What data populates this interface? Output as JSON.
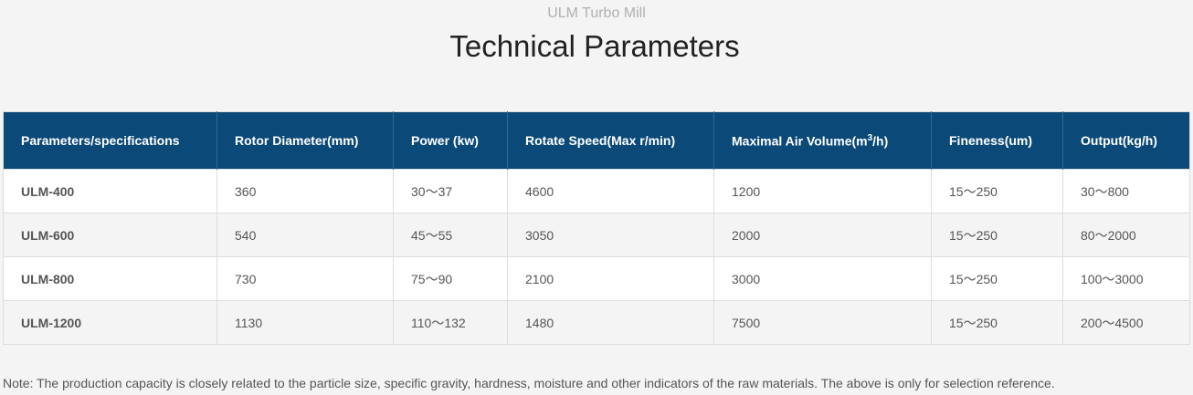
{
  "header": {
    "subtitle": "ULM Turbo Mill",
    "title": "Technical Parameters"
  },
  "table": {
    "columns": [
      {
        "label": "Parameters/specifications"
      },
      {
        "label": "Rotor Diameter(mm)"
      },
      {
        "label": "Power (kw)"
      },
      {
        "label": "Rotate Speed(Max r/min)"
      },
      {
        "label_prefix": "Maximal Air Volume(m",
        "label_sup": "3",
        "label_suffix": "/h)"
      },
      {
        "label": "Fineness(um)"
      },
      {
        "label": "Output(kg/h)"
      }
    ],
    "rows": [
      [
        "ULM-400",
        "360",
        "30～37",
        "4600",
        "1200",
        "15～250",
        "30～800"
      ],
      [
        "ULM-600",
        "540",
        "45～55",
        "3050",
        "2000",
        "15～250",
        "80～2000"
      ],
      [
        "ULM-800",
        "730",
        "75～90",
        "2100",
        "3000",
        "15～250",
        "100～3000"
      ],
      [
        "ULM-1200",
        "1130",
        "110～132",
        "1480",
        "7500",
        "15～250",
        "200～4500"
      ]
    ]
  },
  "note": "Note: The production capacity is closely related to the particle size, specific gravity, hardness, moisture and other indicators of the raw materials. The above is only for selection reference.",
  "colors": {
    "header_bg": "#0b4a78",
    "header_text": "#ffffff",
    "page_bg": "#f4f4f4"
  }
}
